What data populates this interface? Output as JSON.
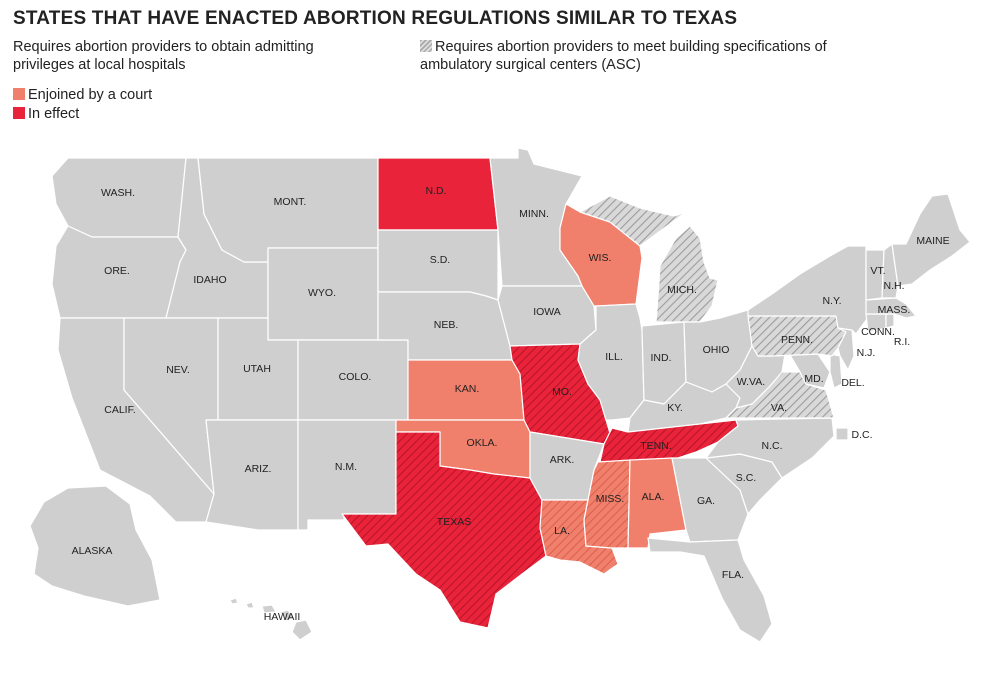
{
  "title": "STATES THAT HAVE ENACTED ABORTION REGULATIONS SIMILAR TO TEXAS",
  "legend": {
    "admitting": "Requires abortion providers to obtain admitting privileges at local hospitals",
    "asc": "Requires abortion providers to meet building specifications of ambulatory surgical centers (ASC)",
    "enjoined": "Enjoined by a court",
    "in_effect": "In effect"
  },
  "colors": {
    "none": "#cfcfcf",
    "enjoined": "#f07f6b",
    "in_effect": "#e8233a",
    "border": "#ffffff"
  },
  "states": {
    "wash": {
      "label": "WASH.",
      "status": "none",
      "asc": false
    },
    "ore": {
      "label": "ORE.",
      "status": "none",
      "asc": false
    },
    "calif": {
      "label": "CALIF.",
      "status": "none",
      "asc": false
    },
    "idaho": {
      "label": "IDAHO",
      "status": "none",
      "asc": false
    },
    "nev": {
      "label": "NEV.",
      "status": "none",
      "asc": false
    },
    "mont": {
      "label": "MONT.",
      "status": "none",
      "asc": false
    },
    "wyo": {
      "label": "WYO.",
      "status": "none",
      "asc": false
    },
    "utah": {
      "label": "UTAH",
      "status": "none",
      "asc": false
    },
    "colo": {
      "label": "COLO.",
      "status": "none",
      "asc": false
    },
    "ariz": {
      "label": "ARIZ.",
      "status": "none",
      "asc": false
    },
    "nm": {
      "label": "N.M.",
      "status": "none",
      "asc": false
    },
    "nd": {
      "label": "N.D.",
      "status": "in_effect",
      "asc": false
    },
    "sd": {
      "label": "S.D.",
      "status": "none",
      "asc": false
    },
    "neb": {
      "label": "NEB.",
      "status": "none",
      "asc": false
    },
    "kan": {
      "label": "KAN.",
      "status": "enjoined",
      "asc": false
    },
    "okla": {
      "label": "OKLA.",
      "status": "enjoined",
      "asc": false
    },
    "texas": {
      "label": "TEXAS",
      "status": "in_effect",
      "asc": true
    },
    "minn": {
      "label": "MINN.",
      "status": "none",
      "asc": false
    },
    "iowa": {
      "label": "IOWA",
      "status": "none",
      "asc": false
    },
    "mo": {
      "label": "MO.",
      "status": "in_effect",
      "asc": true
    },
    "ark": {
      "label": "ARK.",
      "status": "none",
      "asc": false
    },
    "la": {
      "label": "LA.",
      "status": "enjoined",
      "asc": true
    },
    "wis": {
      "label": "WIS.",
      "status": "enjoined",
      "asc": false
    },
    "ill": {
      "label": "ILL.",
      "status": "none",
      "asc": false
    },
    "mich": {
      "label": "MICH.",
      "status": "none",
      "asc": true
    },
    "ind": {
      "label": "IND.",
      "status": "none",
      "asc": false
    },
    "ohio": {
      "label": "OHIO",
      "status": "none",
      "asc": false
    },
    "ky": {
      "label": "KY.",
      "status": "none",
      "asc": false
    },
    "tenn": {
      "label": "TENN.",
      "status": "in_effect",
      "asc": true
    },
    "miss": {
      "label": "MISS.",
      "status": "enjoined",
      "asc": true
    },
    "ala": {
      "label": "ALA.",
      "status": "enjoined",
      "asc": false
    },
    "ga": {
      "label": "GA.",
      "status": "none",
      "asc": false
    },
    "fla": {
      "label": "FLA.",
      "status": "none",
      "asc": false
    },
    "sc": {
      "label": "S.C.",
      "status": "none",
      "asc": false
    },
    "nc": {
      "label": "N.C.",
      "status": "none",
      "asc": false
    },
    "va": {
      "label": "VA.",
      "status": "none",
      "asc": true
    },
    "wva": {
      "label": "W.VA.",
      "status": "none",
      "asc": false
    },
    "md": {
      "label": "MD.",
      "status": "none",
      "asc": false
    },
    "del": {
      "label": "DEL.",
      "status": "none",
      "asc": false
    },
    "dc": {
      "label": "D.C.",
      "status": "none",
      "asc": false
    },
    "pa": {
      "label": "PENN.",
      "status": "none",
      "asc": true
    },
    "nj": {
      "label": "N.J.",
      "status": "none",
      "asc": false
    },
    "ny": {
      "label": "N.Y.",
      "status": "none",
      "asc": false
    },
    "conn": {
      "label": "CONN.",
      "status": "none",
      "asc": false
    },
    "ri": {
      "label": "R.I.",
      "status": "none",
      "asc": false
    },
    "mass": {
      "label": "MASS.",
      "status": "none",
      "asc": false
    },
    "vt": {
      "label": "VT.",
      "status": "none",
      "asc": false
    },
    "nh": {
      "label": "N.H.",
      "status": "none",
      "asc": false
    },
    "maine": {
      "label": "MAINE",
      "status": "none",
      "asc": false
    },
    "alaska": {
      "label": "ALASKA",
      "status": "none",
      "asc": false
    },
    "hawaii": {
      "label": "HAWAII",
      "status": "none",
      "asc": false
    }
  }
}
